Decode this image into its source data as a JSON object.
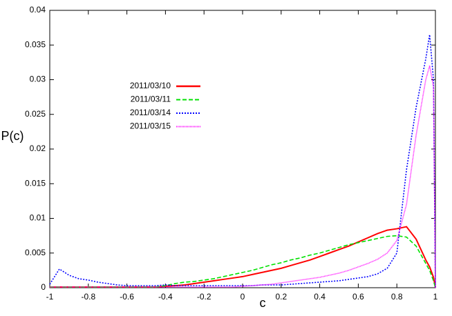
{
  "chart_data": {
    "type": "line",
    "xlabel": "c",
    "ylabel": "P(c)",
    "x": [
      -1,
      -0.95,
      -0.9,
      -0.85,
      -0.8,
      -0.75,
      -0.7,
      -0.65,
      -0.6,
      -0.55,
      -0.5,
      -0.45,
      -0.4,
      -0.35,
      -0.3,
      -0.25,
      -0.2,
      -0.15,
      -0.1,
      -0.05,
      0,
      0.05,
      0.1,
      0.15,
      0.2,
      0.25,
      0.3,
      0.35,
      0.4,
      0.45,
      0.5,
      0.55,
      0.6,
      0.65,
      0.7,
      0.75,
      0.8,
      0.85,
      0.9,
      0.95,
      0.97,
      0.99,
      1
    ],
    "series": [
      {
        "name": "2011/03/10",
        "color": "#ff0000",
        "dash": "solid",
        "values": [
          0.0001,
          0.0001,
          0.0001,
          0.0001,
          0.0001,
          0.0001,
          0.0001,
          0.0001,
          0.0001,
          0.0001,
          0.0001,
          0.0001,
          0.0002,
          0.0003,
          0.0004,
          0.0006,
          0.0008,
          0.001,
          0.0012,
          0.0014,
          0.0016,
          0.0019,
          0.0022,
          0.0025,
          0.0028,
          0.0032,
          0.0036,
          0.004,
          0.0045,
          0.005,
          0.0055,
          0.006,
          0.0066,
          0.0072,
          0.0078,
          0.0083,
          0.0085,
          0.0088,
          0.007,
          0.004,
          0.003,
          0.0015,
          0
        ]
      },
      {
        "name": "2011/03/11",
        "color": "#00e000",
        "dash": "dashed",
        "values": [
          0.0001,
          0.0001,
          0.0001,
          0.0001,
          0.0001,
          0.0001,
          0.0001,
          0.0001,
          0.0001,
          0.0001,
          0.0001,
          0.0001,
          0.0003,
          0.0006,
          0.0008,
          0.0009,
          0.0011,
          0.0013,
          0.0016,
          0.0019,
          0.0022,
          0.0025,
          0.0029,
          0.0033,
          0.0036,
          0.004,
          0.0043,
          0.0047,
          0.005,
          0.0054,
          0.0058,
          0.0062,
          0.0065,
          0.0068,
          0.0071,
          0.0074,
          0.0075,
          0.0073,
          0.006,
          0.0035,
          0.0025,
          0.001,
          0
        ]
      },
      {
        "name": "2011/03/14",
        "color": "#0000ff",
        "dash": "dotted",
        "values": [
          0.0005,
          0.0027,
          0.0018,
          0.0013,
          0.0011,
          0.0008,
          0.0006,
          0.0004,
          0.0003,
          0.0003,
          0.0003,
          0.0003,
          0.0004,
          0.0003,
          0.0003,
          0.0003,
          0.0003,
          0.0003,
          0.0003,
          0.0003,
          0.0003,
          0.0003,
          0.0004,
          0.0004,
          0.0004,
          0.0005,
          0.0006,
          0.0007,
          0.0008,
          0.0009,
          0.001,
          0.0012,
          0.0014,
          0.0016,
          0.002,
          0.0028,
          0.005,
          0.017,
          0.026,
          0.033,
          0.0365,
          0.03,
          0
        ]
      },
      {
        "name": "2011/03/15",
        "color": "#ff00ff",
        "dash": "fine",
        "values": [
          0.0001,
          0.0001,
          0.0001,
          0.0001,
          0.0001,
          0.0001,
          0.0001,
          0.0001,
          0.0001,
          0.0001,
          0.0001,
          0.0001,
          0.0001,
          0.0001,
          0.0001,
          0.0001,
          0.0001,
          0.0001,
          0.0001,
          0.0001,
          0.0002,
          0.0003,
          0.0004,
          0.0005,
          0.0007,
          0.0009,
          0.0011,
          0.0013,
          0.0015,
          0.0018,
          0.0021,
          0.0025,
          0.003,
          0.0035,
          0.0041,
          0.005,
          0.0068,
          0.012,
          0.022,
          0.03,
          0.032,
          0.029,
          0
        ]
      }
    ],
    "xlim": [
      -1,
      1
    ],
    "xticks": [
      -1,
      -0.8,
      -0.6,
      -0.4,
      -0.2,
      0,
      0.2,
      0.4,
      0.6,
      0.8,
      1
    ],
    "ylim": [
      0,
      0.04
    ],
    "yticks": [
      0,
      0.005,
      0.01,
      0.015,
      0.02,
      0.025,
      0.03,
      0.035,
      0.04
    ],
    "grid": false
  }
}
